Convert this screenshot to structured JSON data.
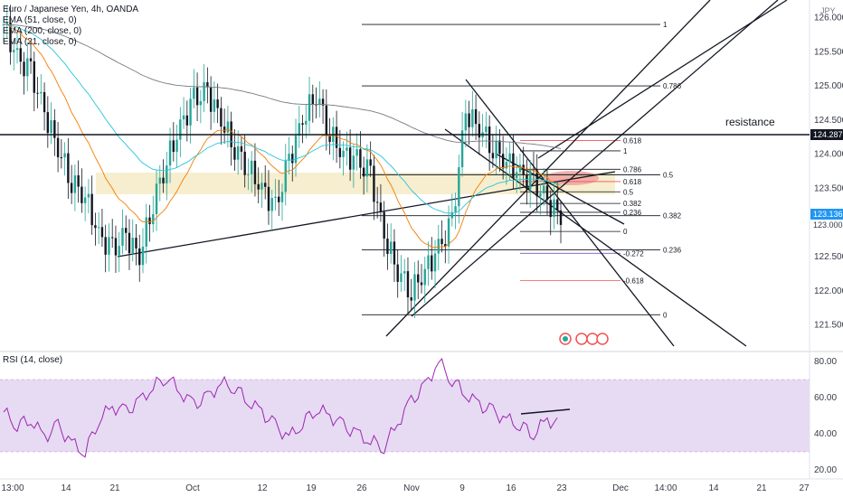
{
  "header": {
    "symbol_line": "Euro / Japanese Yen, 4h, OANDA",
    "indicators": [
      "EMA (51, close, 0)",
      "EMA (200, close, 0)",
      "EMA (21, close, 0)"
    ],
    "currency": "JPY"
  },
  "annotation": {
    "resistance": "resistance"
  },
  "price_tags": {
    "resistance_level": "124.287",
    "current": "123.136",
    "axis_top": "123.000"
  },
  "rsi": {
    "label": "RSI (14, close)"
  },
  "colors": {
    "up": "#26a69a",
    "down": "#131722",
    "ema51": "#2962ff",
    "ema200": "#787b86",
    "ema21": "#f57c00",
    "rsi": "#9c27b0",
    "rsi_band": "#e1d4f0",
    "zone": "#f5e9c4",
    "ellipse": "#ef9a9a",
    "fib_red": "#ef5350",
    "fib_purple": "#7e57c2"
  },
  "chart_data": [
    {
      "type": "line",
      "title": "Euro / Japanese Yen, 4h, OANDA",
      "ylabel": "JPY",
      "ylim": [
        121.25,
        126.25
      ],
      "y_ticks": [
        "126.000",
        "125.500",
        "125.000",
        "124.500",
        "124.000",
        "123.500",
        "123.000",
        "122.500",
        "122.000",
        "121.500"
      ],
      "y_tick_values": [
        126.0,
        125.5,
        125.0,
        124.5,
        124.0,
        123.5,
        123.0,
        122.5,
        122.0,
        121.5
      ],
      "x_ticks": [
        "13:00",
        "14",
        "21",
        "Oct",
        "12",
        "19",
        "26",
        "Nov",
        "9",
        "16",
        "23",
        "Dec",
        "14:00",
        "14",
        "21",
        "27"
      ],
      "series": [
        {
          "values": [
            125.9,
            125.4,
            125.2,
            124.6,
            124.1,
            123.6,
            123.4,
            122.8,
            122.6,
            122.8,
            122.5,
            123.3,
            123.9,
            124.4,
            124.8,
            124.9,
            124.5,
            124.1,
            123.8,
            123.5,
            123.2,
            123.9,
            124.5,
            124.9,
            124.3,
            124.0,
            123.9,
            123.7,
            122.8,
            122.3,
            122.0,
            122.3,
            122.6,
            123.0,
            124.6,
            124.4,
            124.1,
            123.9,
            123.7,
            123.6,
            123.3,
            123.1
          ]
        }
      ],
      "fib_levels": [
        {
          "label": "1",
          "value": 125.9
        },
        {
          "label": "0.786",
          "value": 125.0
        },
        {
          "label": "0.5",
          "value": 123.7
        },
        {
          "label": "0.382",
          "value": 123.1
        },
        {
          "label": "0.236",
          "value": 122.6
        },
        {
          "label": "0",
          "value": 121.65
        }
      ],
      "fib_levels_2": [
        {
          "label": "0.618",
          "value": 124.2
        },
        {
          "label": "1",
          "value": 124.05
        },
        {
          "label": "0.786",
          "value": 123.78
        },
        {
          "label": "0.618",
          "value": 123.6
        },
        {
          "label": "0.5",
          "value": 123.45
        },
        {
          "label": "0.382",
          "value": 123.28
        },
        {
          "label": "0.236",
          "value": 123.15
        },
        {
          "label": "0",
          "value": 122.87
        },
        {
          "label": "-0.272",
          "value": 122.55
        },
        {
          "label": "-0.618",
          "value": 122.15
        }
      ],
      "resistance": 124.287,
      "last": 123.136,
      "legend": "top-left",
      "grid": false
    },
    {
      "type": "line",
      "title": "RSI (14, close)",
      "ylim": [
        15,
        85
      ],
      "y_ticks": [
        "80.00",
        "60.00",
        "40.00",
        "20.00"
      ],
      "y_tick_values": [
        80,
        60,
        40,
        20
      ],
      "band": [
        30,
        70
      ],
      "series": [
        {
          "values": [
            52,
            45,
            48,
            38,
            44,
            35,
            30,
            48,
            55,
            52,
            58,
            66,
            72,
            63,
            56,
            60,
            68,
            66,
            58,
            52,
            44,
            38,
            46,
            54,
            50,
            44,
            40,
            36,
            33,
            46,
            58,
            66,
            80,
            70,
            62,
            56,
            52,
            48,
            45,
            40,
            48,
            44
          ]
        }
      ],
      "grid": false
    }
  ]
}
